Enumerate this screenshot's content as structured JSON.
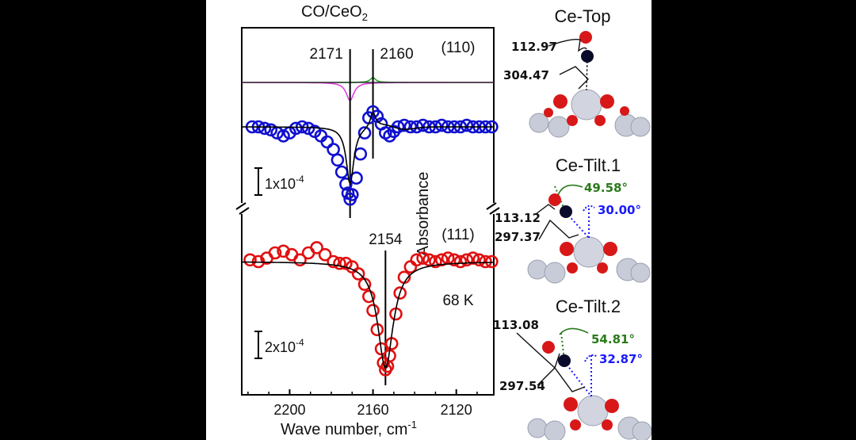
{
  "chart_data": [
    {
      "type": "scatter",
      "title": "CO/CeO",
      "title_sub": "2",
      "xlabel": "Wave number, cm",
      "xlabel_sup": "-1",
      "ylabel": "Absorbance",
      "xlim": [
        2223,
        2102
      ],
      "x_ticks": [
        "2200",
        "2160",
        "2120"
      ],
      "x_tick_values": [
        2200,
        2160,
        2120
      ],
      "panels": [
        {
          "label": "(110)",
          "scale_bar": "1x10",
          "scale_bar_sup": "-4",
          "peak_lines": [
            {
              "x": 2171,
              "label": "2171"
            },
            {
              "x": 2160,
              "label": "2160"
            }
          ],
          "components": [
            {
              "name": "component-green",
              "color": "#2ca02c",
              "center": 2160,
              "width": 1.6,
              "amp": 1.0
            },
            {
              "name": "component-magenta",
              "color": "#e040e0",
              "center": 2171,
              "width": 2.2,
              "amp": -3.8
            }
          ],
          "series": {
            "color": "#1010d0",
            "x": [
              2218,
              2215,
              2212,
              2209,
              2206,
              2203,
              2200,
              2197,
              2194,
              2191,
              2188,
              2185,
              2182,
              2179,
              2177,
              2175,
              2173,
              2172,
              2171,
              2170,
              2168,
              2166,
              2164,
              2162,
              2160,
              2158,
              2156,
              2154,
              2152,
              2150,
              2148,
              2145,
              2142,
              2139,
              2136,
              2133,
              2130,
              2127,
              2124,
              2121,
              2118,
              2115,
              2112,
              2109,
              2106,
              2103
            ],
            "y": [
              0.0,
              0.0,
              -0.1,
              -0.2,
              -0.4,
              -0.6,
              -0.4,
              -0.1,
              0.0,
              -0.1,
              -0.3,
              -0.6,
              -1.0,
              -1.5,
              -2.2,
              -3.0,
              -3.8,
              -4.4,
              -4.8,
              -4.5,
              -3.4,
              -1.8,
              -0.4,
              0.6,
              1.0,
              0.7,
              0.2,
              -0.4,
              -0.6,
              -0.3,
              0.0,
              0.1,
              0.0,
              0.0,
              0.1,
              0.0,
              0.0,
              0.1,
              0.0,
              0.0,
              0.0,
              0.1,
              0.0,
              0.0,
              0.0,
              0.0
            ]
          },
          "fit_color": "#000000"
        },
        {
          "label": "(111)",
          "scale_bar": "2x10",
          "scale_bar_sup": "-4",
          "peak_lines": [
            {
              "x": 2154,
              "label": "2154"
            }
          ],
          "annotation": "68 K",
          "series": {
            "color": "#e01010",
            "x": [
              2219,
              2215,
              2211,
              2207,
              2203,
              2199,
              2195,
              2191,
              2187,
              2183,
              2179,
              2176,
              2173,
              2170,
              2167,
              2164,
              2162,
              2160,
              2158,
              2156,
              2155,
              2154,
              2153,
              2152,
              2151,
              2149,
              2147,
              2145,
              2142,
              2139,
              2136,
              2133,
              2130,
              2127,
              2124,
              2121,
              2118,
              2115,
              2112,
              2109,
              2106,
              2103
            ],
            "y": [
              0.1,
              0.0,
              0.2,
              0.5,
              0.6,
              0.4,
              0.1,
              0.5,
              0.8,
              0.4,
              0.0,
              -0.1,
              -0.1,
              -0.3,
              -0.7,
              -1.3,
              -2.0,
              -2.8,
              -3.9,
              -5.0,
              -5.8,
              -6.2,
              -6.0,
              -5.4,
              -4.7,
              -3.0,
              -1.8,
              -0.9,
              -0.3,
              0.1,
              0.2,
              0.1,
              0.0,
              0.1,
              0.2,
              0.1,
              0.0,
              0.1,
              0.2,
              0.1,
              0.0,
              0.0
            ]
          },
          "fit": {
            "center": 2154,
            "width": 4.5,
            "amp": -6.1,
            "color": "#000000"
          }
        }
      ]
    }
  ],
  "structures": [
    {
      "title": "Ce-Top",
      "labels": [
        {
          "text": "112.97",
          "color": "#111111"
        },
        {
          "text": "304.47",
          "color": "#111111"
        }
      ]
    },
    {
      "title": "Ce-Tilt.1",
      "labels": [
        {
          "text": "49.58°",
          "color": "#2a7a1a"
        },
        {
          "text": "30.00°",
          "color": "#1a1aff"
        },
        {
          "text": "113.12",
          "color": "#111111"
        },
        {
          "text": "297.37",
          "color": "#111111"
        }
      ]
    },
    {
      "title": "Ce-Tilt.2",
      "labels": [
        {
          "text": "113.08",
          "color": "#111111"
        },
        {
          "text": "54.81°",
          "color": "#2a7a1a"
        },
        {
          "text": "32.87°",
          "color": "#1a1aff"
        },
        {
          "text": "297.54",
          "color": "#111111"
        }
      ]
    }
  ],
  "colors": {
    "background": "#000000",
    "figure": "#ffffff",
    "oxygen": "#d81818",
    "carbon": "#0a0a2a",
    "cerium": "#c8ccd8"
  }
}
